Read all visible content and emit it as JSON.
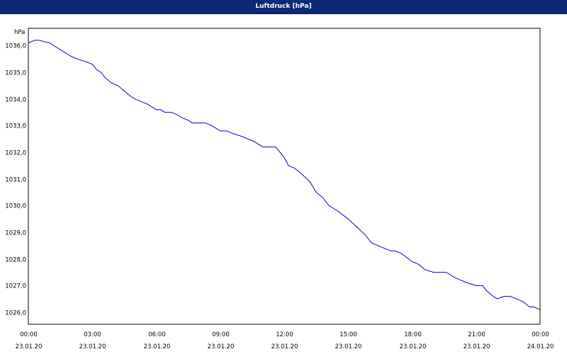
{
  "window": {
    "title": "Luftdruck [hPa]"
  },
  "chart_data": {
    "type": "line",
    "title": "Luftdruck [hPa]",
    "ylabel": "hPa",
    "xlabel": "",
    "ylim": [
      1025.55,
      1036.65
    ],
    "xlim": [
      0,
      24
    ],
    "grid": true,
    "y_ticks": [
      "1026,0",
      "1027,0",
      "1028,0",
      "1029,0",
      "1030,0",
      "1031,0",
      "1032,0",
      "1033,0",
      "1034,0",
      "1035,0",
      "1036,0"
    ],
    "y_tick_values": [
      1026,
      1027,
      1028,
      1029,
      1030,
      1031,
      1032,
      1033,
      1034,
      1035,
      1036
    ],
    "x_ticks": [
      {
        "t": 0,
        "time": "00:00",
        "date": "23.01.20"
      },
      {
        "t": 3,
        "time": "03:00",
        "date": "23.01.20"
      },
      {
        "t": 6,
        "time": "06:00",
        "date": "23.01.20"
      },
      {
        "t": 9,
        "time": "09:00",
        "date": "23.01.20"
      },
      {
        "t": 12,
        "time": "12:00",
        "date": "23.01.20"
      },
      {
        "t": 15,
        "time": "15:00",
        "date": "23.01.20"
      },
      {
        "t": 18,
        "time": "18:00",
        "date": "23.01.20"
      },
      {
        "t": 21,
        "time": "21:00",
        "date": "23.01.20"
      },
      {
        "t": 24,
        "time": "00:00",
        "date": "24.01.20"
      }
    ],
    "line_color": "#0000cc",
    "series": [
      {
        "x": [
          0,
          0.3,
          0.5,
          1.0,
          1.2,
          1.4,
          1.6,
          1.8,
          2.0,
          2.3,
          2.7,
          3.0,
          3.2,
          3.4,
          3.6,
          3.9,
          4.2,
          4.5,
          4.8,
          5.0,
          5.3,
          5.6,
          6.0,
          6.2,
          6.4,
          6.7,
          7.0,
          7.2,
          7.5,
          7.7,
          8.0,
          8.3,
          8.6,
          9.0,
          9.3,
          9.6,
          10.0,
          10.3,
          10.6,
          11.0,
          11.3,
          11.6,
          11.8,
          12.0,
          12.2,
          12.5,
          12.8,
          13.2,
          13.5,
          13.8,
          14.1,
          14.5,
          15.0,
          15.4,
          15.8,
          16.1,
          16.4,
          16.7,
          17.0,
          17.2,
          17.5,
          18.0,
          18.3,
          18.6,
          19.0,
          19.3,
          19.6,
          20.0,
          20.3,
          20.6,
          21.0,
          21.3,
          21.5,
          21.8,
          22.0,
          22.3,
          22.6,
          22.9,
          23.2,
          23.5,
          23.7,
          24.0
        ],
        "y": [
          1036.1,
          1036.2,
          1036.2,
          1036.1,
          1036.0,
          1035.9,
          1035.8,
          1035.7,
          1035.6,
          1035.5,
          1035.4,
          1035.3,
          1035.1,
          1035.0,
          1034.8,
          1034.6,
          1034.5,
          1034.3,
          1034.1,
          1034.0,
          1033.9,
          1033.8,
          1033.6,
          1033.6,
          1033.5,
          1033.5,
          1033.4,
          1033.3,
          1033.2,
          1033.1,
          1033.1,
          1033.1,
          1033.0,
          1032.8,
          1032.8,
          1032.7,
          1032.6,
          1032.5,
          1032.4,
          1032.2,
          1032.2,
          1032.2,
          1032.0,
          1031.8,
          1031.5,
          1031.4,
          1031.2,
          1030.9,
          1030.5,
          1030.3,
          1030.0,
          1029.8,
          1029.5,
          1029.2,
          1028.9,
          1028.6,
          1028.5,
          1028.4,
          1028.3,
          1028.3,
          1028.2,
          1027.9,
          1027.8,
          1027.6,
          1027.5,
          1027.5,
          1027.5,
          1027.3,
          1027.2,
          1027.1,
          1027.0,
          1027.0,
          1026.8,
          1026.6,
          1026.5,
          1026.6,
          1026.6,
          1026.5,
          1026.4,
          1026.2,
          1026.2,
          1026.1
        ]
      }
    ]
  }
}
